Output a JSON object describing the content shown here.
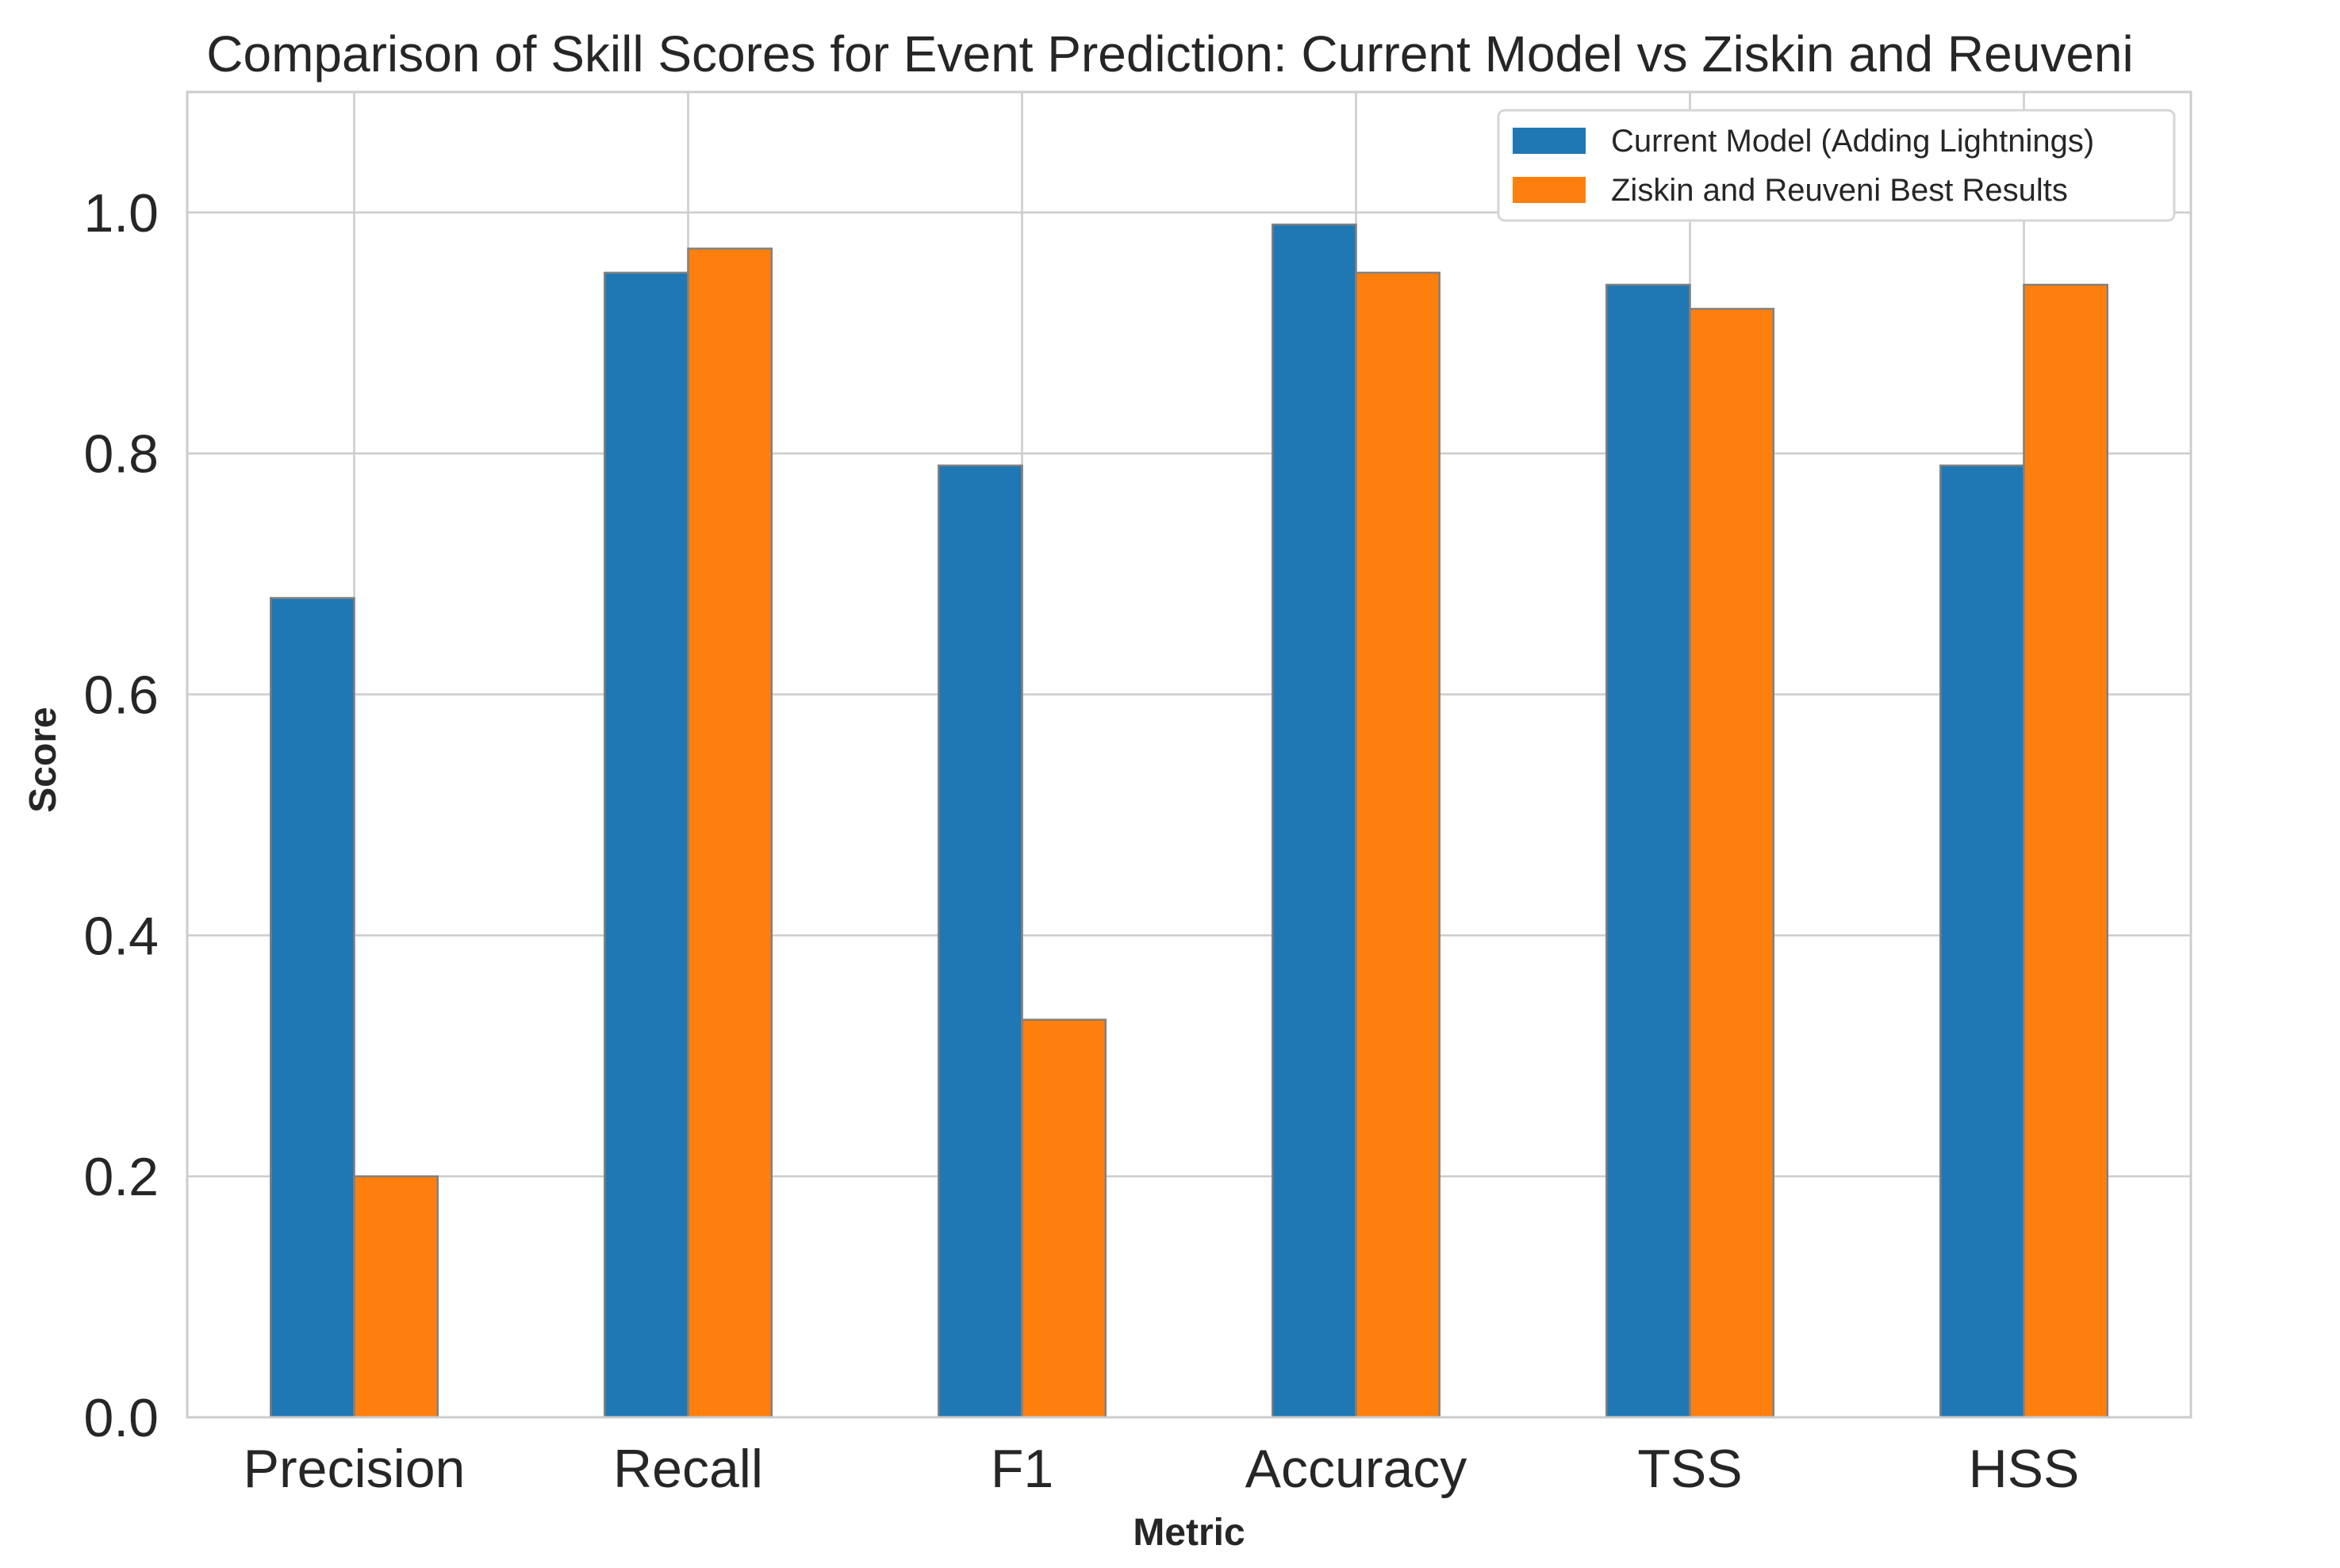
{
  "chart_data": {
    "type": "bar",
    "title": "Comparison of Skill Scores for Event Prediction: Current Model vs Ziskin and Reuveni",
    "xlabel": "Metric",
    "ylabel": "Score",
    "categories": [
      "Precision",
      "Recall",
      "F1",
      "Accuracy",
      "TSS",
      "HSS"
    ],
    "series": [
      {
        "name": "Current Model (Adding Lightnings)",
        "color": "#1f77b4",
        "values": [
          0.68,
          0.95,
          0.79,
          0.99,
          0.94,
          0.79
        ]
      },
      {
        "name": "Ziskin and Reuveni Best Results",
        "color": "#ff7f0e",
        "values": [
          0.2,
          0.97,
          0.33,
          0.95,
          0.92,
          0.94
        ]
      }
    ],
    "ylim": [
      0,
      1.1
    ],
    "yticks": [
      0.0,
      0.2,
      0.4,
      0.6,
      0.8,
      1.0
    ],
    "ytick_labels": [
      "0.0",
      "0.2",
      "0.4",
      "0.6",
      "0.8",
      "1.0"
    ],
    "grid": true,
    "legend_position": "top-right"
  }
}
